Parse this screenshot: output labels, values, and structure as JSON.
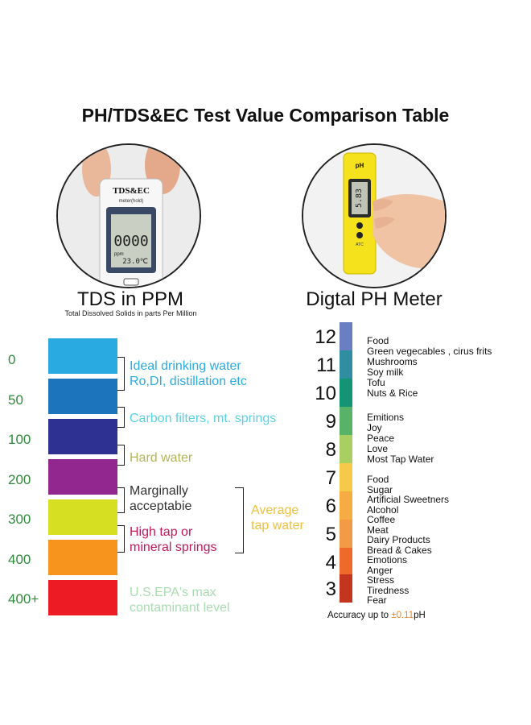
{
  "title": "PH/TDS&EC Test Value Comparison Table",
  "tds_meter": {
    "device_label": "TDS&EC",
    "device_sublabel": "meter(hold)",
    "screen_digits": "0000",
    "screen_unit": "ppm",
    "screen_temp": "23.0℃"
  },
  "ph_meter": {
    "device_label": "pH",
    "screen_digits": "5.83",
    "button_label": "ATC"
  },
  "tds_heading": "TDS in PPM",
  "tds_subheading": "Total Dissolved Solids in parts Per Million",
  "ph_heading": "Digtal PH Meter",
  "tds_levels": [
    {
      "label": "0",
      "color": "#29abe2"
    },
    {
      "label": "50",
      "color": "#1c75bc"
    },
    {
      "label": "100",
      "color": "#2e3192"
    },
    {
      "label": "200",
      "color": "#92278f"
    },
    {
      "label": "300",
      "color": "#d7df23"
    },
    {
      "label": "400",
      "color": "#f7941d"
    },
    {
      "label": "400+",
      "color": "#ed1c24"
    }
  ],
  "tds_descriptions": {
    "ideal_line1": "Ideal drinking water",
    "ideal_line2": "Ro,DI, distillation etc",
    "ideal_color": "#29abe2",
    "carbon": "Carbon filters, mt. springs",
    "carbon_color": "#5bd0e0",
    "hard": "Hard water",
    "hard_color": "#b4b45a",
    "marginal_line1": "Marginally",
    "marginal_line2": "acceptabie",
    "marginal_color": "#333333",
    "high_line1": "High tap or",
    "high_line2": "mineral springs",
    "high_color": "#c2185b",
    "epa_line1": "U.S.EPA's max",
    "epa_line2": "contaminant level",
    "epa_color": "#a8dcb0",
    "average_line1": "Average",
    "average_line2": "tap water",
    "average_color": "#f0c03a"
  },
  "ph_scale": {
    "numbers": [
      "12",
      "11",
      "10",
      "9",
      "8",
      "7",
      "6",
      "5",
      "4",
      "3"
    ],
    "colors": [
      "#6a7fc1",
      "#2f8ea0",
      "#149474",
      "#58b368",
      "#a9cf63",
      "#f7c948",
      "#f6ac42",
      "#f29a46",
      "#ef6a2a",
      "#c4351f"
    ],
    "labels": [
      "Food",
      "Green vegecables , cirus frits",
      "Mushrooms",
      "Soy milk",
      "Tofu",
      "Nuts & Rice",
      "Emitions",
      "Joy",
      "Peace",
      "Love",
      "Most Tap Water",
      "Food",
      "Sugar",
      "Artificial Sweetners",
      "Alcohol",
      "Coffee",
      "Meat",
      "Dairy Products",
      "Bread & Cakes",
      "Emotions",
      "Anger",
      "Stress",
      "Tiredness",
      "Fear"
    ]
  },
  "accuracy": {
    "prefix": "Accuracy up to ",
    "value": "±0.11",
    "suffix": "pH"
  }
}
